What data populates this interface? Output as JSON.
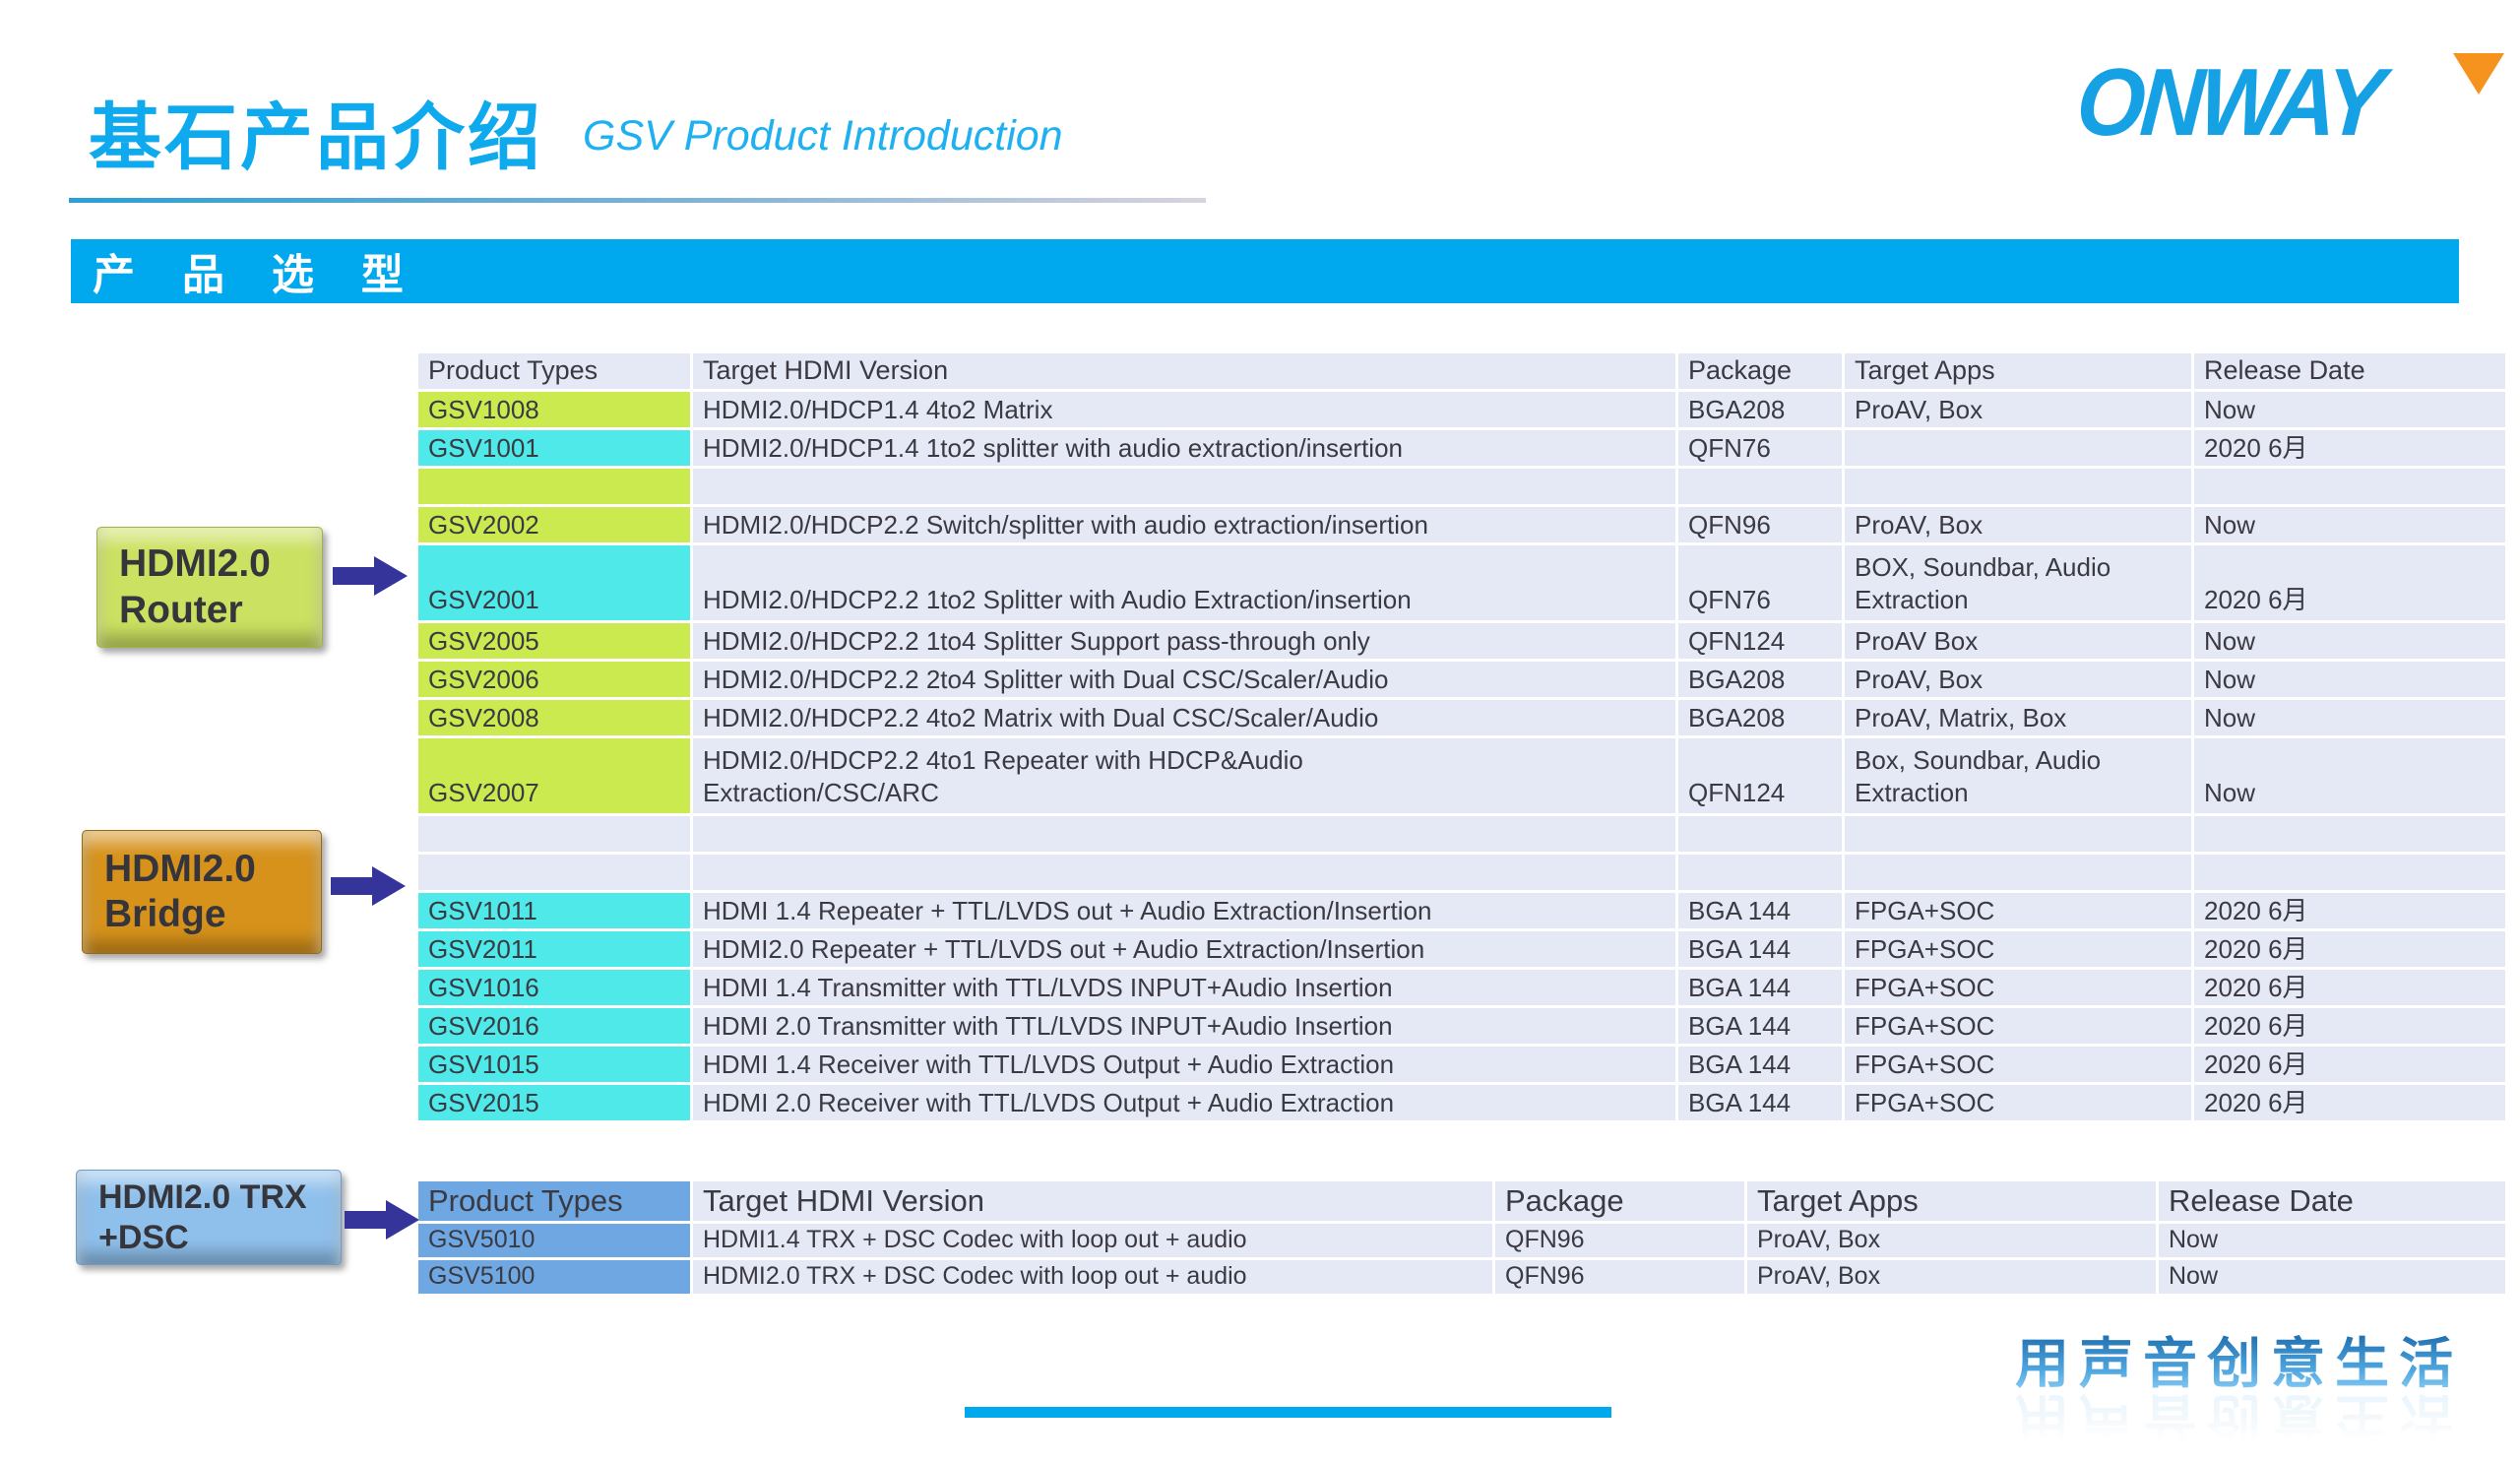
{
  "header": {
    "title_zh": "基石产品介绍",
    "title_en": "GSV Product Introduction",
    "logo_text": "ONWAY"
  },
  "section_banner": "产 品 选 型",
  "groups": {
    "router": {
      "line1": "HDMI2.0",
      "line2": "Router"
    },
    "bridge": {
      "line1": "HDMI2.0",
      "line2": "Bridge"
    },
    "trx": {
      "line1": "HDMI2.0 TRX",
      "line2": "+DSC"
    }
  },
  "main_table": {
    "columns": [
      "Product Types",
      "Target HDMI Version",
      "Package",
      "Target Apps",
      "Release Date"
    ],
    "header_highlight": "",
    "rows": [
      {
        "product": "GSV1008",
        "hl": "green",
        "version": "HDMI2.0/HDCP1.4  4to2 Matrix",
        "package": "BGA208",
        "apps": "ProAV, Box",
        "release": "Now"
      },
      {
        "product": "GSV1001",
        "hl": "cyan",
        "version": "HDMI2.0/HDCP1.4 1to2 splitter with audio extraction/insertion",
        "package": "QFN76",
        "apps": "",
        "release": "2020 6月"
      },
      {
        "product": "",
        "hl": "green",
        "version": "",
        "package": "",
        "apps": "",
        "release": ""
      },
      {
        "product": "GSV2002",
        "hl": "green",
        "version": "HDMI2.0/HDCP2.2 Switch/splitter with audio extraction/insertion",
        "package": "QFN96",
        "apps": "ProAV, Box",
        "release": "Now"
      },
      {
        "product": "GSV2001",
        "hl": "cyan",
        "tall": true,
        "version": "HDMI2.0/HDCP2.2 1to2 Splitter with Audio Extraction/insertion",
        "package": "QFN76",
        "apps": "BOX, Soundbar, Audio\nExtraction",
        "release": "2020 6月"
      },
      {
        "product": "GSV2005",
        "hl": "green",
        "version": "HDMI2.0/HDCP2.2 1to4 Splitter Support pass-through only",
        "package": "QFN124",
        "apps": "ProAV Box",
        "release": "Now"
      },
      {
        "product": "GSV2006",
        "hl": "green",
        "version": "HDMI2.0/HDCP2.2 2to4 Splitter with Dual CSC/Scaler/Audio",
        "package": "BGA208",
        "apps": "ProAV, Box",
        "release": "Now"
      },
      {
        "product": "GSV2008",
        "hl": "green",
        "version": "HDMI2.0/HDCP2.2 4to2 Matrix with Dual CSC/Scaler/Audio",
        "package": "BGA208",
        "apps": "ProAV, Matrix, Box",
        "release": "Now"
      },
      {
        "product": "GSV2007",
        "hl": "green",
        "tall": true,
        "version": "HDMI2.0/HDCP2.2  4to1 Repeater with HDCP&Audio\nExtraction/CSC/ARC",
        "package": "QFN124",
        "apps": "Box, Soundbar, Audio\nExtraction",
        "release": "Now"
      },
      {
        "product": "",
        "hl": "",
        "version": "",
        "package": "",
        "apps": "",
        "release": ""
      },
      {
        "product": "",
        "hl": "",
        "version": "",
        "package": "",
        "apps": "",
        "release": ""
      },
      {
        "product": "GSV1011",
        "hl": "cyan",
        "version": "HDMI 1.4 Repeater + TTL/LVDS out + Audio Extraction/Insertion",
        "package": "BGA 144",
        "apps": "FPGA+SOC",
        "release": "2020 6月"
      },
      {
        "product": "GSV2011",
        "hl": "cyan",
        "version": "HDMI2.0 Repeater + TTL/LVDS out + Audio Extraction/Insertion",
        "package": "BGA 144",
        "apps": "FPGA+SOC",
        "release": "2020 6月"
      },
      {
        "product": "GSV1016",
        "hl": "cyan",
        "version": "HDMI 1.4 Transmitter with TTL/LVDS INPUT+Audio Insertion",
        "package": "BGA 144",
        "apps": "FPGA+SOC",
        "release": "2020 6月"
      },
      {
        "product": "GSV2016",
        "hl": "cyan",
        "version": "HDMI 2.0 Transmitter with TTL/LVDS INPUT+Audio Insertion",
        "package": "BGA 144",
        "apps": "FPGA+SOC",
        "release": "2020 6月"
      },
      {
        "product": "GSV1015",
        "hl": "cyan",
        "version": "HDMI 1.4 Receiver with TTL/LVDS Output + Audio Extraction",
        "package": "BGA 144",
        "apps": "FPGA+SOC",
        "release": "2020 6月"
      },
      {
        "product": "GSV2015",
        "hl": "cyan",
        "version": "HDMI 2.0 Receiver with TTL/LVDS Output + Audio Extraction",
        "package": "BGA 144",
        "apps": "FPGA+SOC",
        "release": "2020 6月"
      }
    ]
  },
  "trx_table": {
    "columns": [
      "Product Types",
      "Target HDMI Version",
      "Package",
      "Target Apps",
      "Release Date"
    ],
    "header_highlight": "blue",
    "rows": [
      {
        "product": "GSV5010",
        "hl": "blue",
        "version": "HDMI1.4 TRX + DSC Codec with loop out + audio",
        "package": "QFN96",
        "apps": "ProAV, Box",
        "release": "Now"
      },
      {
        "product": "GSV5100",
        "hl": "blue",
        "version": "HDMI2.0 TRX + DSC Codec with loop out + audio",
        "package": "QFN96",
        "apps": "ProAV, Box",
        "release": "Now"
      }
    ]
  },
  "footer": {
    "slogan": "用声音创意生活"
  },
  "colors": {
    "accent": "#00A9EE",
    "row_bg": "#E5E8F5",
    "highlight_green": "#CBEA50",
    "highlight_cyan": "#4FE9E9",
    "highlight_blue": "#6FA7E3",
    "arrow_navy": "#34349B",
    "logo_blue": "#17A1E5",
    "logo_orange": "#F6921E"
  }
}
